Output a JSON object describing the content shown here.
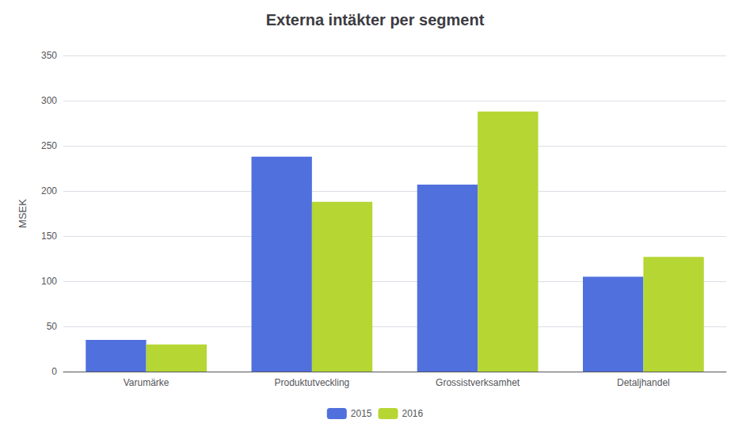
{
  "chart_data": {
    "type": "bar",
    "title": "Externa intäkter per segment",
    "categories": [
      "Varumärke",
      "Produktutveckling",
      "Grossistverksamhet",
      "Detaljhandel"
    ],
    "series": [
      {
        "name": "2015",
        "values": [
          35,
          238,
          207,
          105
        ]
      },
      {
        "name": "2016",
        "values": [
          30,
          188,
          288,
          127
        ]
      }
    ],
    "ylabel": "MSEK",
    "ylim": [
      0,
      350
    ],
    "yticks": [
      0,
      50,
      100,
      150,
      200,
      250,
      300,
      350
    ],
    "grid": true,
    "legend": "bottom"
  }
}
